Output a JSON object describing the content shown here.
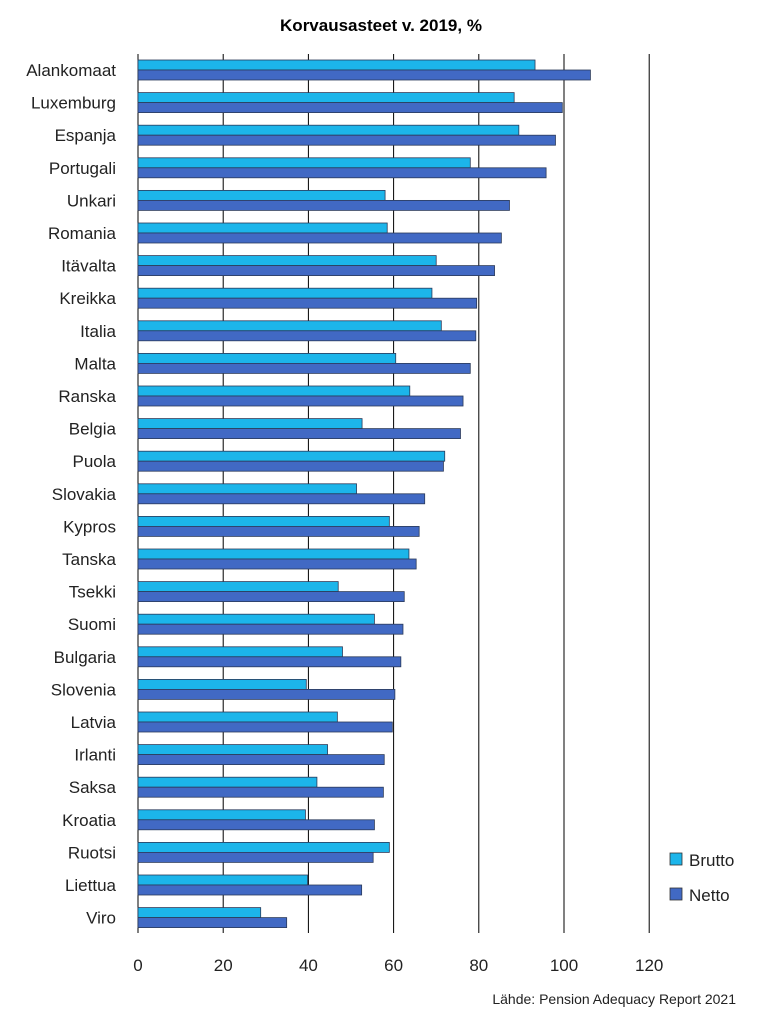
{
  "chart_data": {
    "type": "bar",
    "orientation": "horizontal",
    "title": "Korvausasteet v. 2019, %",
    "source": "Lähde: Pension Adequacy Report 2021",
    "categories": [
      "Alankomaat",
      "Luxemburg",
      "Espanja",
      "Portugali",
      "Unkari",
      "Romania",
      "Itävalta",
      "Kreikka",
      "Italia",
      "Malta",
      "Ranska",
      "Belgia",
      "Puola",
      "Slovakia",
      "Kypros",
      "Tanska",
      "Tsekki",
      "Suomi",
      "Bulgaria",
      "Slovenia",
      "Latvia",
      "Irlanti",
      "Saksa",
      "Kroatia",
      "Ruotsi",
      "Liettua",
      "Viro"
    ],
    "series": [
      {
        "name": "Brutto",
        "color": "#1cb5ea",
        "values": [
          93.2,
          88.3,
          89.4,
          78.0,
          58.0,
          58.5,
          70.0,
          69.0,
          71.2,
          60.5,
          63.8,
          52.6,
          72.0,
          51.3,
          59.0,
          63.6,
          47.0,
          55.5,
          48.0,
          39.5,
          46.8,
          44.5,
          42.0,
          39.3,
          59.0,
          39.8,
          28.8
        ]
      },
      {
        "name": "Netto",
        "color": "#4169c4",
        "values": [
          106.2,
          99.6,
          98.0,
          95.8,
          87.2,
          85.3,
          83.7,
          79.5,
          79.3,
          78.0,
          76.3,
          75.7,
          71.7,
          67.3,
          66.0,
          65.3,
          62.5,
          62.2,
          61.7,
          60.3,
          59.7,
          57.8,
          57.6,
          55.5,
          55.2,
          52.5,
          34.9
        ]
      }
    ],
    "xlim": [
      0,
      120
    ],
    "xticks": [
      0,
      20,
      40,
      60,
      80,
      100,
      120
    ],
    "grid": "vertical",
    "legend_position": "bottom-right"
  }
}
